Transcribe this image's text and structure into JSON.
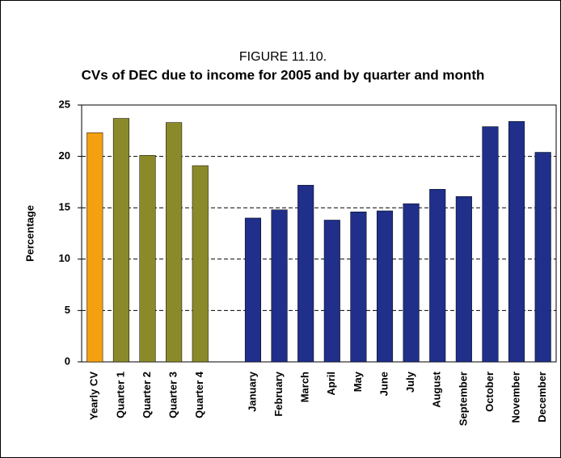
{
  "chart_data": {
    "type": "bar",
    "title": "FIGURE 11.10.",
    "subtitle": "CVs of DEC due to income for 2005 and by quarter and month",
    "y_label": "Percentage",
    "categories": [
      "Yearly CV",
      "Quarter 1",
      "Quarter 2",
      "Quarter 3",
      "Quarter 4",
      null,
      "January",
      "February",
      "March",
      "April",
      "May",
      "June",
      "July",
      "August",
      "September",
      "October",
      "November",
      "December"
    ],
    "values": [
      22.3,
      23.7,
      20.1,
      23.3,
      19.1,
      null,
      14.0,
      14.8,
      17.2,
      13.8,
      14.6,
      14.7,
      15.4,
      16.8,
      16.1,
      22.9,
      23.4,
      20.4
    ],
    "colors": [
      "#f5a00f",
      "#8b8a2a",
      "#8b8a2a",
      "#8b8a2a",
      "#8b8a2a",
      null,
      "#1f2f8a",
      "#1f2f8a",
      "#1f2f8a",
      "#1f2f8a",
      "#1f2f8a",
      "#1f2f8a",
      "#1f2f8a",
      "#1f2f8a",
      "#1f2f8a",
      "#1f2f8a",
      "#1f2f8a",
      "#1f2f8a"
    ],
    "ylim": [
      0,
      25
    ],
    "yticks": [
      0,
      5,
      10,
      15,
      20,
      25
    ],
    "grid": true
  }
}
